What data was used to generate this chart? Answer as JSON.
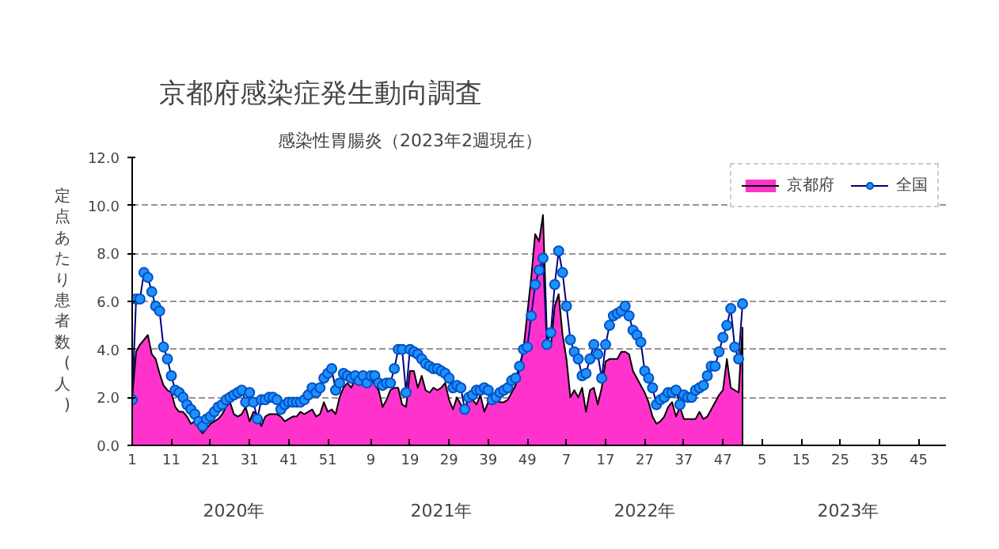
{
  "chart_data": {
    "type": "area",
    "title": "京都府感染症発生動向調査",
    "subtitle": "感染性胃腸炎（2023年2週現在）",
    "ylabel": "定点あたり患者数(人)",
    "annotations": [
      "2020年",
      "2021年",
      "2022年",
      "2023年"
    ],
    "categories": [
      "1",
      null,
      null,
      null,
      null,
      null,
      null,
      null,
      null,
      null,
      "11",
      null,
      null,
      null,
      null,
      null,
      null,
      null,
      null,
      null,
      "21",
      null,
      null,
      null,
      null,
      null,
      null,
      null,
      null,
      null,
      "31",
      null,
      null,
      null,
      null,
      null,
      null,
      null,
      null,
      null,
      "41",
      null,
      null,
      null,
      null,
      null,
      null,
      null,
      null,
      null,
      "51",
      null,
      null,
      null,
      null,
      null,
      null,
      null,
      null,
      null,
      null,
      "9",
      null,
      null,
      null,
      null,
      null,
      null,
      null,
      null,
      null,
      "19",
      null,
      null,
      null,
      null,
      null,
      null,
      null,
      null,
      null,
      "29",
      null,
      null,
      null,
      null,
      null,
      null,
      null,
      null,
      null,
      "39",
      null,
      null,
      null,
      null,
      null,
      null,
      null,
      null,
      null,
      "49",
      null,
      null,
      null,
      null,
      null,
      null,
      null,
      null,
      null,
      "7",
      null,
      null,
      null,
      null,
      null,
      null,
      null,
      null,
      null,
      "17",
      null,
      null,
      null,
      null,
      null,
      null,
      null,
      null,
      null,
      "27",
      null,
      null,
      null,
      null,
      null,
      null,
      null,
      null,
      null,
      "37",
      null,
      null,
      null,
      null,
      null,
      null,
      null,
      null,
      null,
      "47",
      null,
      null,
      null,
      null,
      null,
      null,
      null,
      null,
      null,
      "5",
      null,
      null,
      null,
      null,
      null,
      null,
      null,
      null,
      null,
      "15",
      null,
      null,
      null,
      null,
      null,
      null,
      null,
      null,
      null,
      "25",
      null,
      null,
      null,
      null,
      null,
      null,
      null,
      null,
      null,
      "35",
      null,
      null,
      null,
      null,
      null,
      null,
      null,
      null,
      null,
      "45",
      null,
      null,
      null,
      null,
      null,
      null,
      null
    ],
    "series": [
      {
        "name": "京都府",
        "color": "#ff33cc",
        "values": [
          2.0,
          3.9,
          4.2,
          4.4,
          4.6,
          3.8,
          3.6,
          3.0,
          2.5,
          2.3,
          2.2,
          1.6,
          1.4,
          1.4,
          1.2,
          0.9,
          1.0,
          0.7,
          0.5,
          0.7,
          0.9,
          1.0,
          1.1,
          1.3,
          1.6,
          1.8,
          1.3,
          1.2,
          1.3,
          1.6,
          1.0,
          1.4,
          1.3,
          0.8,
          1.2,
          1.3,
          1.3,
          1.3,
          1.2,
          1.0,
          1.1,
          1.2,
          1.2,
          1.4,
          1.3,
          1.4,
          1.5,
          1.2,
          1.3,
          1.8,
          1.4,
          1.5,
          1.3,
          2.0,
          2.4,
          2.6,
          2.4,
          2.8,
          2.9,
          3.1,
          2.8,
          2.9,
          2.5,
          2.3,
          1.6,
          1.9,
          2.3,
          2.4,
          2.4,
          1.7,
          1.6,
          3.1,
          3.1,
          2.4,
          2.9,
          2.3,
          2.2,
          2.4,
          2.3,
          2.4,
          2.6,
          1.9,
          1.5,
          2.0,
          1.7,
          1.4,
          2.1,
          1.9,
          1.7,
          2.1,
          1.4,
          1.8,
          1.7,
          1.9,
          1.8,
          1.8,
          1.9,
          2.2,
          2.5,
          3.2,
          4.0,
          5.5,
          7.0,
          8.8,
          8.5,
          9.6,
          4.6,
          4.1,
          5.8,
          6.3,
          4.6,
          3.6,
          2.0,
          2.3,
          2.0,
          2.4,
          1.4,
          2.3,
          2.4,
          1.7,
          2.4,
          3.5,
          3.6,
          3.6,
          3.6,
          3.9,
          3.9,
          3.8,
          3.1,
          2.8,
          2.5,
          2.2,
          1.8,
          1.2,
          0.9,
          1.0,
          1.2,
          1.6,
          1.8,
          1.2,
          1.6,
          1.1,
          1.1,
          1.1,
          1.1,
          1.4,
          1.1,
          1.2,
          1.5,
          1.8,
          2.1,
          2.3,
          3.6,
          2.4,
          2.3,
          2.2,
          4.9,
          null,
          null,
          null,
          null,
          null,
          null,
          null,
          null,
          null,
          null,
          null,
          null,
          null,
          null,
          null,
          null,
          null,
          null,
          null,
          null,
          null,
          null,
          null,
          null,
          null,
          null,
          null,
          null,
          null,
          null,
          null,
          null,
          null,
          null,
          null,
          null,
          null,
          null,
          null,
          null,
          null,
          null,
          null,
          null,
          null,
          null,
          null,
          null,
          null,
          null,
          null,
          null
        ]
      },
      {
        "name": "全国",
        "type": "line",
        "color": "#1e90ff",
        "marker": "circle",
        "values": [
          1.9,
          6.1,
          6.1,
          7.2,
          7.0,
          6.4,
          5.8,
          5.6,
          4.1,
          3.6,
          2.9,
          2.3,
          2.2,
          2.0,
          1.7,
          1.5,
          1.3,
          1.0,
          0.8,
          1.1,
          1.2,
          1.4,
          1.6,
          1.7,
          1.9,
          2.0,
          2.1,
          2.2,
          2.3,
          1.8,
          2.2,
          1.8,
          1.1,
          1.9,
          1.9,
          2.0,
          2.0,
          1.9,
          1.5,
          1.7,
          1.8,
          1.8,
          1.8,
          1.8,
          1.9,
          2.1,
          2.4,
          2.2,
          2.4,
          2.8,
          3.0,
          3.2,
          2.3,
          2.6,
          3.0,
          2.9,
          2.8,
          2.9,
          2.7,
          2.9,
          2.6,
          2.9,
          2.9,
          2.6,
          2.5,
          2.6,
          2.6,
          3.2,
          4.0,
          4.0,
          2.2,
          4.0,
          3.9,
          3.8,
          3.6,
          3.4,
          3.3,
          3.2,
          3.2,
          3.1,
          3.0,
          2.8,
          2.4,
          2.5,
          2.4,
          1.5,
          2.0,
          2.1,
          2.3,
          2.3,
          2.4,
          2.3,
          1.9,
          2.0,
          2.2,
          2.3,
          2.4,
          2.7,
          2.8,
          3.3,
          4.0,
          4.1,
          5.4,
          6.7,
          7.3,
          7.8,
          4.2,
          4.7,
          6.7,
          8.1,
          7.2,
          5.8,
          4.4,
          3.9,
          3.6,
          2.9,
          3.0,
          3.6,
          4.2,
          3.8,
          2.8,
          4.2,
          5.0,
          5.4,
          5.5,
          5.6,
          5.8,
          5.4,
          4.8,
          4.6,
          4.3,
          3.1,
          2.8,
          2.4,
          1.7,
          1.9,
          2.0,
          2.2,
          2.2,
          2.3,
          1.7,
          2.1,
          2.0,
          2.0,
          2.3,
          2.4,
          2.5,
          2.9,
          3.3,
          3.3,
          3.9,
          4.5,
          5.0,
          5.7,
          4.1,
          3.6,
          5.9,
          null,
          null,
          null,
          null,
          null,
          null,
          null,
          null,
          null,
          null,
          null,
          null,
          null,
          null,
          null,
          null,
          null,
          null,
          null,
          null,
          null,
          null,
          null,
          null,
          null,
          null,
          null,
          null,
          null,
          null,
          null,
          null,
          null,
          null,
          null,
          null,
          null,
          null,
          null,
          null,
          null,
          null,
          null,
          null,
          null,
          null,
          null,
          null,
          null,
          null,
          null,
          null
        ]
      }
    ],
    "ylim": [
      0,
      12
    ],
    "yticks": [
      {
        "value": 0,
        "label": "0.0"
      },
      {
        "value": 2,
        "label": "2.0"
      },
      {
        "value": 4,
        "label": "4.0"
      },
      {
        "value": 6,
        "label": "6.0"
      },
      {
        "value": 8,
        "label": "8.0"
      },
      {
        "value": 10,
        "label": "10.0"
      },
      {
        "value": 12,
        "label": "12.0"
      }
    ],
    "grid": "y",
    "legend": "top right"
  }
}
